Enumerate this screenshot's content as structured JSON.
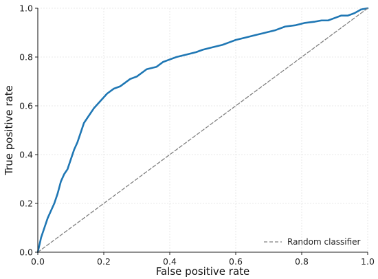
{
  "chart_data": {
    "type": "line",
    "title": "",
    "xlabel": "False positive rate",
    "ylabel": "True positive rate",
    "xlim": [
      0,
      1
    ],
    "ylim": [
      0,
      1
    ],
    "x_ticks": [
      "0.0",
      "0.2",
      "0.4",
      "0.6",
      "0.8",
      "1.0"
    ],
    "y_ticks": [
      "0.0",
      "0.2",
      "0.4",
      "0.6",
      "0.8",
      "1.0"
    ],
    "grid": true,
    "legend_position": "lower-right",
    "series": [
      {
        "color": "#1f77b4",
        "style": "solid",
        "x": [
          0.0,
          0.005,
          0.01,
          0.02,
          0.03,
          0.04,
          0.05,
          0.06,
          0.07,
          0.08,
          0.09,
          0.1,
          0.11,
          0.12,
          0.13,
          0.14,
          0.15,
          0.17,
          0.19,
          0.21,
          0.23,
          0.25,
          0.28,
          0.3,
          0.33,
          0.36,
          0.38,
          0.4,
          0.42,
          0.45,
          0.48,
          0.5,
          0.53,
          0.56,
          0.58,
          0.6,
          0.63,
          0.66,
          0.69,
          0.72,
          0.75,
          0.78,
          0.81,
          0.84,
          0.86,
          0.88,
          0.9,
          0.92,
          0.94,
          0.96,
          0.98,
          1.0
        ],
        "y": [
          0.0,
          0.03,
          0.06,
          0.1,
          0.14,
          0.17,
          0.2,
          0.24,
          0.29,
          0.32,
          0.34,
          0.38,
          0.42,
          0.45,
          0.49,
          0.53,
          0.55,
          0.59,
          0.62,
          0.65,
          0.67,
          0.68,
          0.71,
          0.72,
          0.75,
          0.76,
          0.78,
          0.79,
          0.8,
          0.81,
          0.82,
          0.83,
          0.84,
          0.85,
          0.86,
          0.87,
          0.88,
          0.89,
          0.9,
          0.91,
          0.925,
          0.93,
          0.94,
          0.945,
          0.95,
          0.95,
          0.96,
          0.97,
          0.97,
          0.98,
          0.995,
          1.0
        ]
      },
      {
        "name": "Random classifier",
        "color": "#808080",
        "style": "dashed",
        "x": [
          0,
          1
        ],
        "y": [
          0,
          1
        ]
      }
    ]
  }
}
